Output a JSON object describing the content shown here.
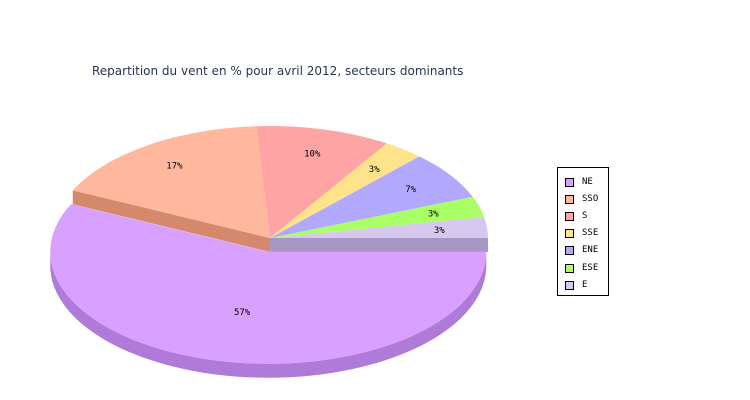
{
  "chart_data": {
    "type": "pie",
    "title": "Repartition du vent en % pour avril 2012, secteurs dominants",
    "slices": [
      {
        "label": "NE",
        "value": 57,
        "display": "57%",
        "color": "#d9a1ff",
        "side": "#b07ad8",
        "exploded": true
      },
      {
        "label": "SSO",
        "value": 17,
        "display": "17%",
        "color": "#ffb89d",
        "side": "#d4896d",
        "exploded": false
      },
      {
        "label": "S",
        "value": 10,
        "display": "10%",
        "color": "#ffa4a4",
        "side": "#d07c7c",
        "exploded": false
      },
      {
        "label": "SSE",
        "value": 3,
        "display": "3%",
        "color": "#ffe38a",
        "side": "#d2b866",
        "exploded": false
      },
      {
        "label": "ENE",
        "value": 7,
        "display": "7%",
        "color": "#b2a9ff",
        "side": "#8a82d6",
        "exploded": false
      },
      {
        "label": "ESE",
        "value": 3,
        "display": "3%",
        "color": "#aaff66",
        "side": "#82c84a",
        "exploded": false
      },
      {
        "label": "E",
        "value": 3,
        "display": "3%",
        "color": "#d6c8ee",
        "side": "#a896c4",
        "exploded": false
      }
    ],
    "legend_position": "right",
    "style": "3d"
  }
}
